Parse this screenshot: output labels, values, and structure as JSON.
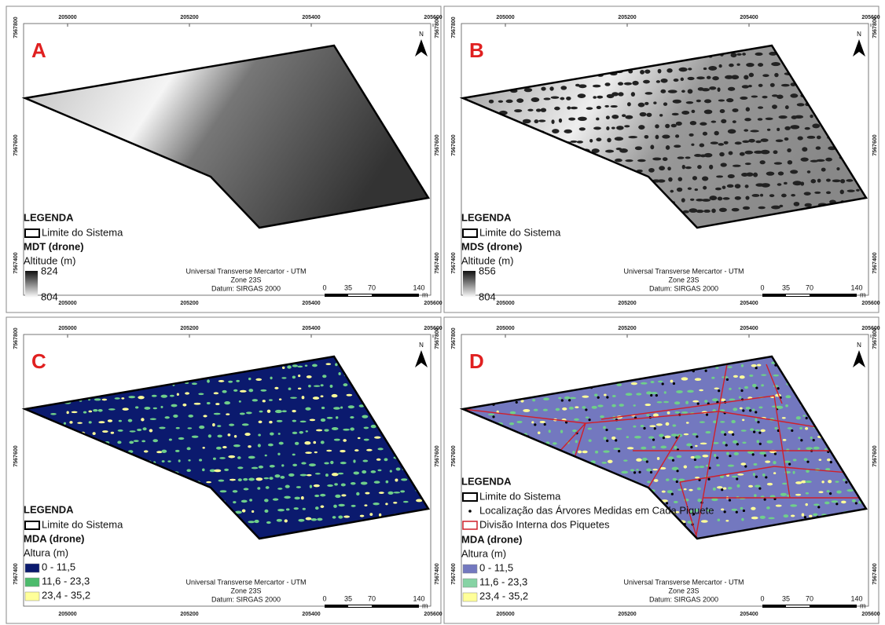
{
  "frame": {
    "x_ticks": [
      205000,
      205200,
      205400,
      205600
    ],
    "y_ticks": [
      7567800,
      7567600,
      7567400
    ],
    "north": "N",
    "projection": [
      "Universal Transverse Mercartor - UTM",
      "Zone 23S",
      "Datum: SIRGAS 2000"
    ],
    "scale": {
      "ticks": [
        "0",
        "35",
        "70",
        "140"
      ],
      "unit": "m"
    }
  },
  "panels": [
    {
      "letter": "A",
      "fill": "mdt",
      "legend": {
        "title": "LEGENDA",
        "boundary": "Limite do Sistema",
        "heading": "MDT (drone)",
        "unit": "Altitude (m)",
        "gradient": {
          "high": "824",
          "low": "804"
        }
      }
    },
    {
      "letter": "B",
      "fill": "mds",
      "legend": {
        "title": "LEGENDA",
        "boundary": "Limite do Sistema",
        "heading": "MDS (drone)",
        "unit": "Altitude (m)",
        "gradient": {
          "high": "856",
          "low": "804"
        }
      }
    },
    {
      "letter": "C",
      "fill": "mda",
      "legend": {
        "title": "LEGENDA",
        "boundary": "Limite do Sistema",
        "heading": "MDA (drone)",
        "unit": "Altura (m)",
        "classes": [
          {
            "label": "0 - 11,5",
            "color": "#0b1a6e"
          },
          {
            "label": "11,6 - 23,3",
            "color": "#4cbb6c"
          },
          {
            "label": "23,4 - 35,2",
            "color": "#ffff99"
          }
        ]
      }
    },
    {
      "letter": "D",
      "fill": "mda2",
      "legend": {
        "title": "LEGENDA",
        "boundary": "Limite do Sistema",
        "points": "Localização das Árvores Medidas em Cada Piquete",
        "divisions": "Divisão Interna dos Piquetes",
        "heading": "MDA (drone)",
        "unit": "Altura (m)",
        "classes": [
          {
            "label": "0 - 11,5",
            "color": "#7378bf"
          },
          {
            "label": "11,6 - 23,3",
            "color": "#86d3a4"
          },
          {
            "label": "23,4 - 35,2",
            "color": "#ffff99"
          }
        ]
      }
    }
  ]
}
